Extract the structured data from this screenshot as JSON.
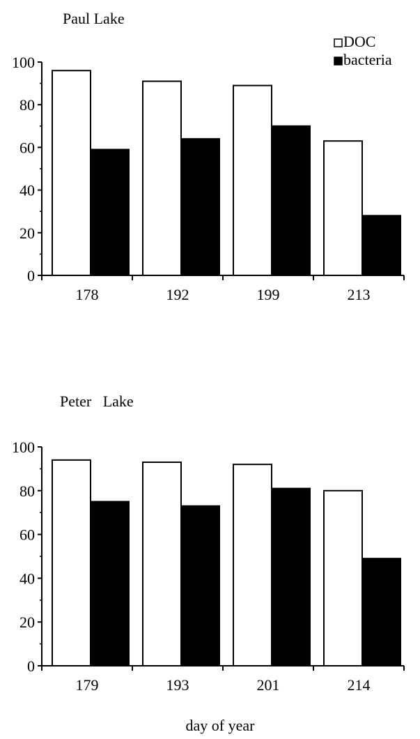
{
  "chart_data": [
    {
      "type": "bar",
      "title": "Paul Lake",
      "categories": [
        "178",
        "192",
        "199",
        "213"
      ],
      "series": [
        {
          "name": "DOC",
          "values": [
            96,
            91,
            89,
            63
          ],
          "color": "#ffffff"
        },
        {
          "name": "bacteria",
          "values": [
            59,
            64,
            70,
            28
          ],
          "color": "#000000"
        }
      ],
      "yticks": [
        "0",
        "20",
        "40",
        "60",
        "80",
        "100"
      ],
      "ylim": [
        0,
        100
      ],
      "xlabel": "",
      "ylabel": "",
      "legend": "top-right",
      "grid": false
    },
    {
      "type": "bar",
      "title": "Peter   Lake",
      "categories": [
        "179",
        "193",
        "201",
        "214"
      ],
      "series": [
        {
          "name": "DOC",
          "values": [
            94,
            93,
            92,
            80
          ],
          "color": "#ffffff"
        },
        {
          "name": "bacteria",
          "values": [
            75,
            73,
            81,
            49
          ],
          "color": "#000000"
        }
      ],
      "yticks": [
        "0",
        "20",
        "40",
        "60",
        "80",
        "100"
      ],
      "ylim": [
        0,
        100
      ],
      "xlabel": "day of year",
      "ylabel": "",
      "legend": "none",
      "grid": false
    }
  ]
}
